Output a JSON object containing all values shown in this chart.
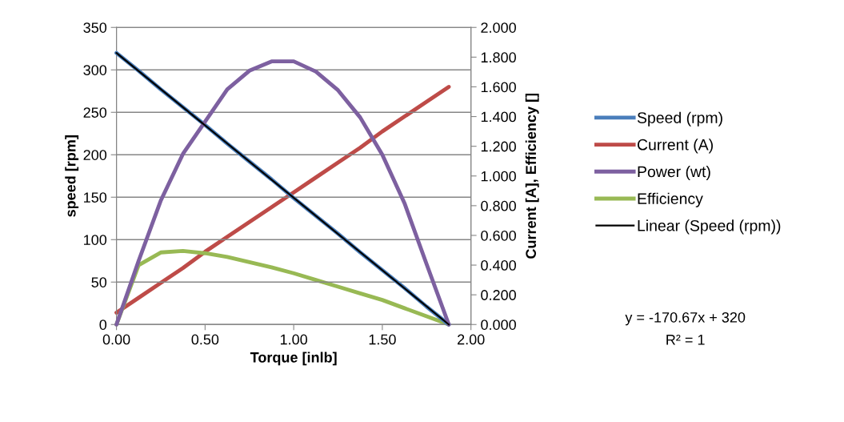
{
  "chart_data": {
    "type": "line",
    "xlabel": "Torque [inlb]",
    "ylabel": "speed [rpm]",
    "y2label": "Current [A], Efficiency []",
    "x": [
      0,
      0.125,
      0.25,
      0.375,
      0.5,
      0.625,
      0.75,
      0.875,
      1.0,
      1.125,
      1.25,
      1.375,
      1.5,
      1.625,
      1.75,
      1.875
    ],
    "series": [
      {
        "name": "Speed (rpm)",
        "color": "#4a7ebb",
        "values": [
          320,
          299,
          277,
          256,
          235,
          213,
          192,
          171,
          149,
          128,
          107,
          85,
          64,
          43,
          21,
          0
        ]
      },
      {
        "name": "Current (A)",
        "color": "#be4b48",
        "axis": "y2",
        "values": [
          0.08,
          0.18,
          0.28,
          0.38,
          0.49,
          0.59,
          0.69,
          0.79,
          0.89,
          0.99,
          1.09,
          1.19,
          1.3,
          1.4,
          1.5,
          1.6
        ]
      },
      {
        "name": "Power (wt)",
        "color": "#7d60a0",
        "values": [
          0,
          75,
          146,
          201,
          239,
          277,
          299,
          310,
          310,
          298,
          276,
          244,
          200,
          143,
          71,
          0
        ]
      },
      {
        "name": "Efficiency",
        "color": "#98b954",
        "axis": "y2",
        "values": [
          0,
          0.4,
          0.485,
          0.495,
          0.48,
          0.455,
          0.42,
          0.385,
          0.345,
          0.3,
          0.255,
          0.21,
          0.165,
          0.11,
          0.055,
          0
        ]
      },
      {
        "name": "Linear (Speed (rpm))",
        "type": "line",
        "color": "#000000",
        "x": [
          0,
          1.875
        ],
        "values": [
          320,
          0
        ]
      }
    ],
    "xlim": [
      0,
      2
    ],
    "xticks": [
      {
        "value": 0,
        "label": "0.00"
      },
      {
        "value": 0.5,
        "label": "0.50"
      },
      {
        "value": 1,
        "label": "1.00"
      },
      {
        "value": 1.5,
        "label": "1.50"
      },
      {
        "value": 2,
        "label": "2.00"
      }
    ],
    "ylim": [
      0,
      350
    ],
    "yticks": [
      0,
      50,
      100,
      150,
      200,
      250,
      300,
      350
    ],
    "y2lim": [
      0,
      2
    ],
    "y2ticks": [
      {
        "value": 0,
        "label": "0.000"
      },
      {
        "value": 0.2,
        "label": "0.200"
      },
      {
        "value": 0.4,
        "label": "0.400"
      },
      {
        "value": 0.6,
        "label": "0.600"
      },
      {
        "value": 0.8,
        "label": "0.800"
      },
      {
        "value": 1.0,
        "label": "1.000"
      },
      {
        "value": 1.2,
        "label": "1.200"
      },
      {
        "value": 1.4,
        "label": "1.400"
      },
      {
        "value": 1.6,
        "label": "1.600"
      },
      {
        "value": 1.8,
        "label": "1.800"
      },
      {
        "value": 2.0,
        "label": "2.000"
      }
    ],
    "grid": "y",
    "legend": "right",
    "marker": "none",
    "line_style": "solid",
    "annotations": [
      "y = -170.67x + 320",
      "R² = 1"
    ]
  }
}
